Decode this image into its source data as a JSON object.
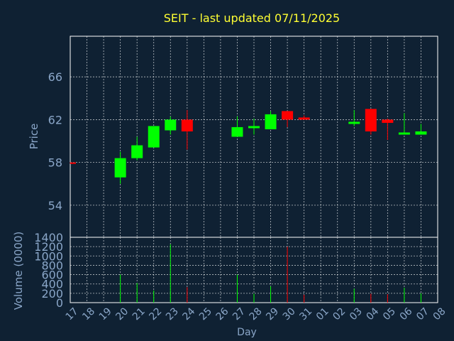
{
  "title": "SEIT - last updated 07/11/2025",
  "chart_data": [
    {
      "type": "candlestick",
      "ylabel": "Price",
      "ylim": [
        51,
        69.8
      ],
      "yticks": [
        54,
        58,
        62,
        66
      ],
      "grid": true,
      "colors": {
        "up": "#00ff00",
        "down": "#ff0000",
        "background": "#0f2133",
        "frame": "#ffffff"
      },
      "days": [
        {
          "x": 0,
          "open": 58.0,
          "high": 58.0,
          "low": 57.9,
          "close": 57.9
        },
        {
          "x": 3,
          "open": 56.6,
          "high": 59.0,
          "low": 56.0,
          "close": 58.4
        },
        {
          "x": 4,
          "open": 58.4,
          "high": 60.4,
          "low": 58.2,
          "close": 59.6
        },
        {
          "x": 5,
          "open": 59.4,
          "high": 61.4,
          "low": 59.4,
          "close": 61.4
        },
        {
          "x": 6,
          "open": 61.0,
          "high": 62.3,
          "low": 60.6,
          "close": 62.0
        },
        {
          "x": 7,
          "open": 62.0,
          "high": 62.9,
          "low": 59.2,
          "close": 60.9
        },
        {
          "x": 10,
          "open": 60.4,
          "high": 62.3,
          "low": 60.4,
          "close": 61.3
        },
        {
          "x": 11,
          "open": 61.2,
          "high": 62.1,
          "low": 60.6,
          "close": 61.4
        },
        {
          "x": 12,
          "open": 61.1,
          "high": 62.8,
          "low": 61.1,
          "close": 62.5
        },
        {
          "x": 13,
          "open": 62.8,
          "high": 62.8,
          "low": 61.3,
          "close": 62.0
        },
        {
          "x": 14,
          "open": 62.2,
          "high": 62.4,
          "low": 62.0,
          "close": 62.0
        },
        {
          "x": 17,
          "open": 61.6,
          "high": 62.9,
          "low": 61.4,
          "close": 61.8
        },
        {
          "x": 18,
          "open": 63.0,
          "high": 63.0,
          "low": 60.6,
          "close": 60.9
        },
        {
          "x": 19,
          "open": 62.0,
          "high": 62.1,
          "low": 60.1,
          "close": 61.7
        },
        {
          "x": 20,
          "open": 60.6,
          "high": 62.6,
          "low": 60.6,
          "close": 60.8
        },
        {
          "x": 21,
          "open": 60.6,
          "high": 61.6,
          "low": 60.6,
          "close": 60.9
        }
      ]
    },
    {
      "type": "bar",
      "ylabel": "Volume (0000)",
      "xlabel": "Day",
      "ylim": [
        0,
        1400
      ],
      "yticks": [
        0,
        200,
        400,
        600,
        800,
        1000,
        1200,
        1400
      ],
      "categories": [
        "17",
        "18",
        "19",
        "20",
        "21",
        "22",
        "23",
        "24",
        "25",
        "26",
        "27",
        "28",
        "29",
        "30",
        "31",
        "01",
        "02",
        "03",
        "04",
        "05",
        "06",
        "07",
        "08"
      ],
      "bars": [
        {
          "x": 3,
          "value": 600,
          "color": "#00ff00"
        },
        {
          "x": 4,
          "value": 420,
          "color": "#00ff00"
        },
        {
          "x": 5,
          "value": 260,
          "color": "#00ff00"
        },
        {
          "x": 6,
          "value": 1250,
          "color": "#00ff00"
        },
        {
          "x": 7,
          "value": 330,
          "color": "#ff0000"
        },
        {
          "x": 10,
          "value": 600,
          "color": "#00ff00"
        },
        {
          "x": 11,
          "value": 190,
          "color": "#00ff00"
        },
        {
          "x": 12,
          "value": 350,
          "color": "#00ff00"
        },
        {
          "x": 13,
          "value": 1200,
          "color": "#ff0000"
        },
        {
          "x": 14,
          "value": 170,
          "color": "#ff0000"
        },
        {
          "x": 17,
          "value": 300,
          "color": "#00ff00"
        },
        {
          "x": 18,
          "value": 190,
          "color": "#ff0000"
        },
        {
          "x": 19,
          "value": 180,
          "color": "#ff0000"
        },
        {
          "x": 20,
          "value": 320,
          "color": "#00ff00"
        },
        {
          "x": 21,
          "value": 200,
          "color": "#00ff00"
        }
      ]
    }
  ]
}
